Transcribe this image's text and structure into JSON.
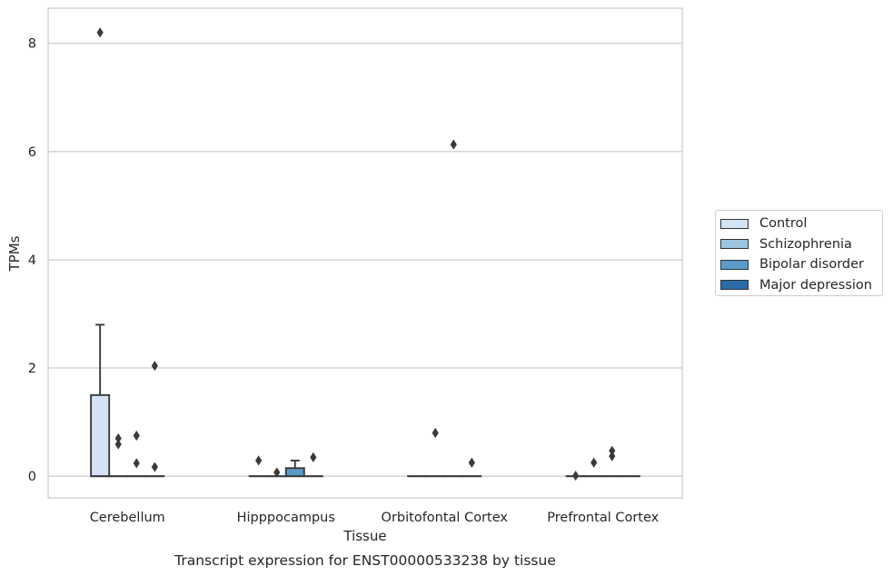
{
  "chart_data": {
    "type": "box",
    "title": "Transcript expression for ENST00000533238 by tissue",
    "xlabel": "Tissue",
    "ylabel": "TPMs",
    "ylim": [
      -0.4,
      8.65
    ],
    "yticks": [
      0,
      2,
      4,
      6,
      8
    ],
    "grid": "horizontal",
    "legend_position": "right",
    "categories": [
      "Cerebellum",
      "Hipppocampus",
      "Orbitofontal Cortex",
      "Prefrontal Cortex"
    ],
    "series": [
      {
        "name": "Control",
        "color": "#d4e3f3"
      },
      {
        "name": "Schizophrenia",
        "color": "#9dc4df"
      },
      {
        "name": "Bipolar disorder",
        "color": "#5a9ac9"
      },
      {
        "name": "Major depression",
        "color": "#2b6ca8"
      }
    ],
    "boxes": [
      {
        "category": "Cerebellum",
        "series": "Control",
        "q1": 0,
        "median": 0,
        "q3": 1.5,
        "whisker_low": 0,
        "whisker_high": 2.8,
        "outliers": [
          8.2
        ]
      },
      {
        "category": "Cerebellum",
        "series": "Schizophrenia",
        "q1": 0,
        "median": 0,
        "q3": 0,
        "whisker_low": 0,
        "whisker_high": 0,
        "outliers": [
          0.7,
          0.59
        ]
      },
      {
        "category": "Cerebellum",
        "series": "Bipolar disorder",
        "q1": 0,
        "median": 0,
        "q3": 0,
        "whisker_low": 0,
        "whisker_high": 0,
        "outliers": [
          0.75,
          0.24
        ]
      },
      {
        "category": "Cerebellum",
        "series": "Major depression",
        "q1": 0,
        "median": 0,
        "q3": 0,
        "whisker_low": 0,
        "whisker_high": 0,
        "outliers": [
          2.04,
          0.17
        ]
      },
      {
        "category": "Hipppocampus",
        "series": "Control",
        "q1": 0,
        "median": 0,
        "q3": 0,
        "whisker_low": 0,
        "whisker_high": 0,
        "outliers": [
          0.29
        ]
      },
      {
        "category": "Hipppocampus",
        "series": "Schizophrenia",
        "q1": 0,
        "median": 0,
        "q3": 0,
        "whisker_low": 0,
        "whisker_high": 0,
        "outliers": [
          0.07
        ]
      },
      {
        "category": "Hipppocampus",
        "series": "Bipolar disorder",
        "q1": 0,
        "median": 0,
        "q3": 0.15,
        "whisker_low": 0,
        "whisker_high": 0.29,
        "outliers": []
      },
      {
        "category": "Hipppocampus",
        "series": "Major depression",
        "q1": 0,
        "median": 0,
        "q3": 0,
        "whisker_low": 0,
        "whisker_high": 0,
        "outliers": [
          0.35
        ]
      },
      {
        "category": "Orbitofontal Cortex",
        "series": "Control",
        "q1": 0,
        "median": 0,
        "q3": 0,
        "whisker_low": 0,
        "whisker_high": 0,
        "outliers": []
      },
      {
        "category": "Orbitofontal Cortex",
        "series": "Schizophrenia",
        "q1": 0,
        "median": 0,
        "q3": 0,
        "whisker_low": 0,
        "whisker_high": 0,
        "outliers": [
          0.8
        ]
      },
      {
        "category": "Orbitofontal Cortex",
        "series": "Bipolar disorder",
        "q1": 0,
        "median": 0,
        "q3": 0,
        "whisker_low": 0,
        "whisker_high": 0,
        "outliers": [
          6.13
        ]
      },
      {
        "category": "Orbitofontal Cortex",
        "series": "Major depression",
        "q1": 0,
        "median": 0,
        "q3": 0,
        "whisker_low": 0,
        "whisker_high": 0,
        "outliers": [
          0.25
        ]
      },
      {
        "category": "Prefrontal Cortex",
        "series": "Control",
        "q1": 0,
        "median": 0,
        "q3": 0,
        "whisker_low": 0,
        "whisker_high": 0,
        "outliers": [
          0.01
        ]
      },
      {
        "category": "Prefrontal Cortex",
        "series": "Schizophrenia",
        "q1": 0,
        "median": 0,
        "q3": 0,
        "whisker_low": 0,
        "whisker_high": 0,
        "outliers": [
          0.25
        ]
      },
      {
        "category": "Prefrontal Cortex",
        "series": "Bipolar disorder",
        "q1": 0,
        "median": 0,
        "q3": 0,
        "whisker_low": 0,
        "whisker_high": 0,
        "outliers": [
          0.47,
          0.37
        ]
      },
      {
        "category": "Prefrontal Cortex",
        "series": "Major depression",
        "q1": 0,
        "median": 0,
        "q3": 0,
        "whisker_low": 0,
        "whisker_high": 0,
        "outliers": []
      }
    ]
  }
}
